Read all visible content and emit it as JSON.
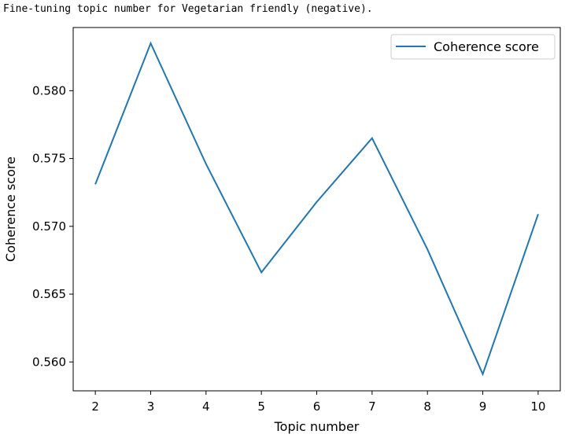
{
  "output": {
    "text": "Fine-tuning topic number for Vegetarian friendly (negative)."
  },
  "chart_data": {
    "type": "line",
    "x": [
      2,
      3,
      4,
      5,
      6,
      7,
      8,
      9,
      10
    ],
    "series": [
      {
        "name": "Coherence score",
        "values": [
          0.5731,
          0.5835,
          0.5746,
          0.5666,
          0.5718,
          0.5765,
          0.5683,
          0.5591,
          0.5709
        ],
        "color": "#1f77b4"
      }
    ],
    "xlabel": "Topic number",
    "ylabel": "Coherence score",
    "xlim": [
      1.6,
      10.4
    ],
    "ylim": [
      0.55787,
      0.58466
    ],
    "xticks": [
      2,
      3,
      4,
      5,
      6,
      7,
      8,
      9,
      10
    ],
    "yticks": [
      0.56,
      0.565,
      0.57,
      0.575,
      0.58
    ],
    "ytick_labels": [
      "0.560",
      "0.565",
      "0.570",
      "0.575",
      "0.580"
    ],
    "legend": "upper right",
    "grid": false
  }
}
